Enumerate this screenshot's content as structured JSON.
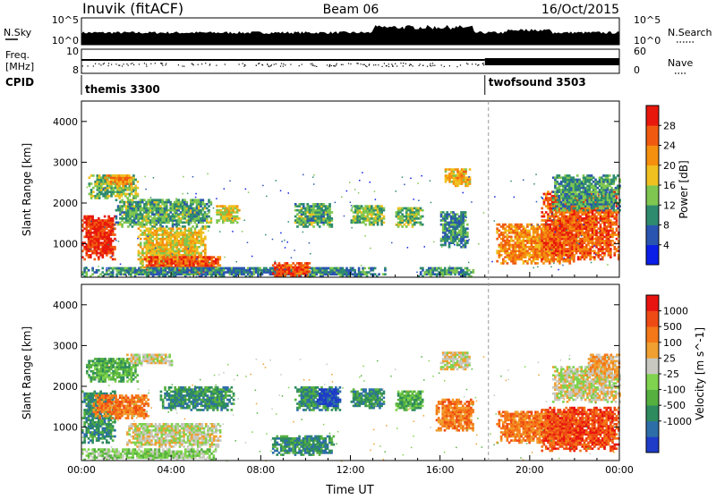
{
  "header": {
    "station": "Inuvik (fitACF)",
    "beam": "Beam 06",
    "date": "16/Oct/2015"
  },
  "top_panels": {
    "nsky_label": "N.Sky",
    "nsky_ticks": [
      "10^5",
      "10^0"
    ],
    "nsearch_label": "N.Search",
    "nsearch_ticks": [
      "10^5",
      "10^0"
    ],
    "freq_label": "Freq.",
    "freq_unit": "[MHz]",
    "freq_ticks": [
      "10",
      "8"
    ],
    "nave_label": "Nave",
    "nave_ticks": [
      "60",
      "0"
    ],
    "cpid_label": "CPID",
    "cpid_segments": [
      {
        "name": "themis 3300",
        "start_hour": 0
      },
      {
        "name": "twofsound 3503",
        "start_hour": 18
      }
    ]
  },
  "chart_data": [
    {
      "type": "heatmap",
      "name": "power",
      "ylabel": "Slant Range [km]",
      "xlabel": "",
      "x_ticks": [
        "00:00",
        "04:00",
        "08:00",
        "12:00",
        "16:00",
        "20:00",
        "00:00"
      ],
      "x_range_hours": [
        0,
        24
      ],
      "y_ticks": [
        1000,
        2000,
        3000,
        4000
      ],
      "ylim": [
        180,
        4500
      ],
      "colorbar": {
        "label": "Power [dB]",
        "ticks": [
          "4",
          "8",
          "12",
          "16",
          "20",
          "24",
          "28"
        ],
        "colors": [
          "#0a1ee8",
          "#2a55b0",
          "#2e8b6e",
          "#7fc650",
          "#f0c020",
          "#f5900f",
          "#f05a10",
          "#e8180c"
        ],
        "range": [
          0,
          32
        ]
      },
      "regions": [
        {
          "t0": 0.0,
          "t1": 1.5,
          "r0": 600,
          "r1": 1700,
          "v": 29
        },
        {
          "t0": 0.3,
          "t1": 2.5,
          "r0": 2100,
          "r1": 2700,
          "v": 14
        },
        {
          "t0": 1.0,
          "t1": 2.2,
          "r0": 2400,
          "r1": 2700,
          "v": 22
        },
        {
          "t0": 1.5,
          "t1": 5.8,
          "r0": 1400,
          "r1": 2100,
          "v": 12
        },
        {
          "t0": 2.5,
          "t1": 5.5,
          "r0": 400,
          "r1": 1400,
          "v": 18
        },
        {
          "t0": 2.8,
          "t1": 6.2,
          "r0": 250,
          "r1": 700,
          "v": 27
        },
        {
          "t0": 6.0,
          "t1": 7.0,
          "r0": 1500,
          "r1": 1950,
          "v": 17
        },
        {
          "t0": 0.0,
          "t1": 13.5,
          "r0": 180,
          "r1": 420,
          "v": 9
        },
        {
          "t0": 8.5,
          "t1": 10.2,
          "r0": 200,
          "r1": 520,
          "v": 27
        },
        {
          "t0": 9.5,
          "t1": 11.2,
          "r0": 1400,
          "r1": 2000,
          "v": 12
        },
        {
          "t0": 12.0,
          "t1": 13.5,
          "r0": 1450,
          "r1": 1950,
          "v": 13
        },
        {
          "t0": 14.0,
          "t1": 15.2,
          "r0": 1400,
          "r1": 1900,
          "v": 13
        },
        {
          "t0": 16.0,
          "t1": 17.2,
          "r0": 900,
          "r1": 1800,
          "v": 10
        },
        {
          "t0": 16.2,
          "t1": 17.3,
          "r0": 2400,
          "r1": 2850,
          "v": 20
        },
        {
          "t0": 15.0,
          "t1": 17.5,
          "r0": 180,
          "r1": 400,
          "v": 11
        },
        {
          "t0": 18.5,
          "t1": 22.0,
          "r0": 500,
          "r1": 1500,
          "v": 23
        },
        {
          "t0": 20.5,
          "t1": 24.0,
          "r0": 600,
          "r1": 2300,
          "v": 26
        },
        {
          "t0": 21.0,
          "t1": 24.0,
          "r0": 1800,
          "r1": 2700,
          "v": 11
        }
      ]
    },
    {
      "type": "heatmap",
      "name": "velocity",
      "ylabel": "Slant Range [km]",
      "xlabel": "Time UT",
      "x_ticks": [
        "00:00",
        "04:00",
        "08:00",
        "12:00",
        "16:00",
        "20:00",
        "00:00"
      ],
      "x_range_hours": [
        0,
        24
      ],
      "y_ticks": [
        1000,
        2000,
        3000,
        4000
      ],
      "ylim": [
        180,
        4500
      ],
      "colorbar": {
        "label": "Velocity [m s^-1]",
        "ticks": [
          "1000",
          "500",
          "100",
          "25",
          "-25",
          "-100",
          "-500",
          "-1000"
        ],
        "colors": [
          "#1e3cc8",
          "#2e6ea8",
          "#2e8b5e",
          "#56b040",
          "#7fd34e",
          "#c8c8c0",
          "#f0a030",
          "#f57818",
          "#ee4a14",
          "#e81410"
        ]
      },
      "regions": [
        {
          "t0": 0.0,
          "t1": 1.5,
          "r0": 600,
          "r1": 1900,
          "v": 2
        },
        {
          "t0": 0.2,
          "t1": 2.5,
          "r0": 2100,
          "r1": 2700,
          "v": 3
        },
        {
          "t0": 0.5,
          "t1": 3.0,
          "r0": 1200,
          "r1": 1800,
          "v": 7
        },
        {
          "t0": 2.0,
          "t1": 4.0,
          "r0": 2500,
          "r1": 2800,
          "v": 5
        },
        {
          "t0": 2.0,
          "t1": 6.2,
          "r0": 500,
          "r1": 1100,
          "v": 5
        },
        {
          "t0": 3.5,
          "t1": 6.8,
          "r0": 1400,
          "r1": 2000,
          "v": 2
        },
        {
          "t0": 0.0,
          "t1": 6.0,
          "r0": 180,
          "r1": 450,
          "v": 4
        },
        {
          "t0": 8.5,
          "t1": 11.2,
          "r0": 300,
          "r1": 800,
          "v": 2
        },
        {
          "t0": 9.5,
          "t1": 11.5,
          "r0": 1400,
          "r1": 2000,
          "v": 2
        },
        {
          "t0": 10.5,
          "t1": 11.5,
          "r0": 1500,
          "r1": 1950,
          "v": 0
        },
        {
          "t0": 12.0,
          "t1": 13.5,
          "r0": 1450,
          "r1": 1950,
          "v": 2
        },
        {
          "t0": 14.0,
          "t1": 15.2,
          "r0": 1400,
          "r1": 1900,
          "v": 3
        },
        {
          "t0": 15.8,
          "t1": 17.5,
          "r0": 900,
          "r1": 1700,
          "v": 7
        },
        {
          "t0": 16.0,
          "t1": 17.3,
          "r0": 2400,
          "r1": 2850,
          "v": 5
        },
        {
          "t0": 18.5,
          "t1": 22.0,
          "r0": 600,
          "r1": 1400,
          "v": 7
        },
        {
          "t0": 20.5,
          "t1": 24.0,
          "r0": 400,
          "r1": 1500,
          "v": 8
        },
        {
          "t0": 21.0,
          "t1": 24.0,
          "r0": 1600,
          "r1": 2500,
          "v": 5
        },
        {
          "t0": 22.5,
          "t1": 24.0,
          "r0": 2200,
          "r1": 2800,
          "v": 6
        }
      ]
    }
  ]
}
